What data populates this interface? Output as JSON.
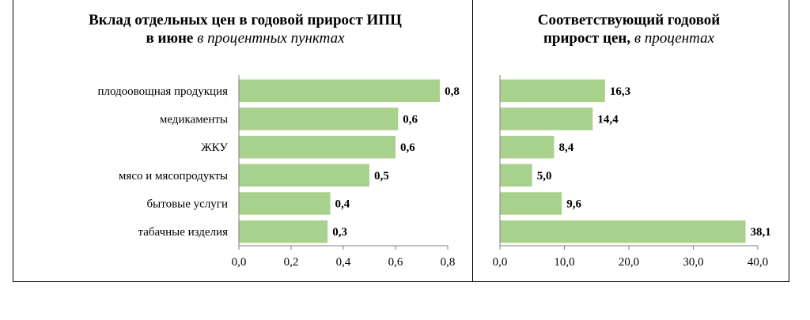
{
  "chart_data": [
    {
      "type": "bar",
      "orientation": "horizontal",
      "title_main": "Вклад отдельных цен в годовой прирост ИПЦ",
      "title_line2": "в июне",
      "title_unit": "в процентных пунктах",
      "categories": [
        "плодоовощная продукция",
        "медикаменты",
        "ЖКУ",
        "мясо и мясопродукты",
        "бытовые услуги",
        "табачные изделия"
      ],
      "values": [
        0.77,
        0.61,
        0.6,
        0.5,
        0.35,
        0.34
      ],
      "value_labels": [
        "0,8",
        "0,6",
        "0,6",
        "0,5",
        "0,4",
        "0,3"
      ],
      "xlim": [
        0,
        0.8
      ],
      "ticks": [
        0,
        0.2,
        0.4,
        0.6,
        0.8
      ],
      "tick_labels": [
        "0,0",
        "0,2",
        "0,4",
        "0,6",
        "0,8"
      ],
      "bar_color": "#a9d18e",
      "grid": false
    },
    {
      "type": "bar",
      "orientation": "horizontal",
      "title_main": "Соответствующий годовой",
      "title_line2": "прирост цен,",
      "title_unit": "в процентах",
      "categories": [
        "плодоовощная продукция",
        "медикаменты",
        "ЖКУ",
        "мясо и мясопродукты",
        "бытовые услуги",
        "табачные изделия"
      ],
      "values": [
        16.3,
        14.4,
        8.4,
        5.0,
        9.6,
        38.1
      ],
      "value_labels": [
        "16,3",
        "14,4",
        "8,4",
        "5,0",
        "9,6",
        "38,1"
      ],
      "xlim": [
        0,
        40
      ],
      "ticks": [
        0,
        10,
        20,
        30,
        40
      ],
      "tick_labels": [
        "0,0",
        "10,0",
        "20,0",
        "30,0",
        "40,0"
      ],
      "bar_color": "#a9d18e",
      "grid": false
    }
  ]
}
